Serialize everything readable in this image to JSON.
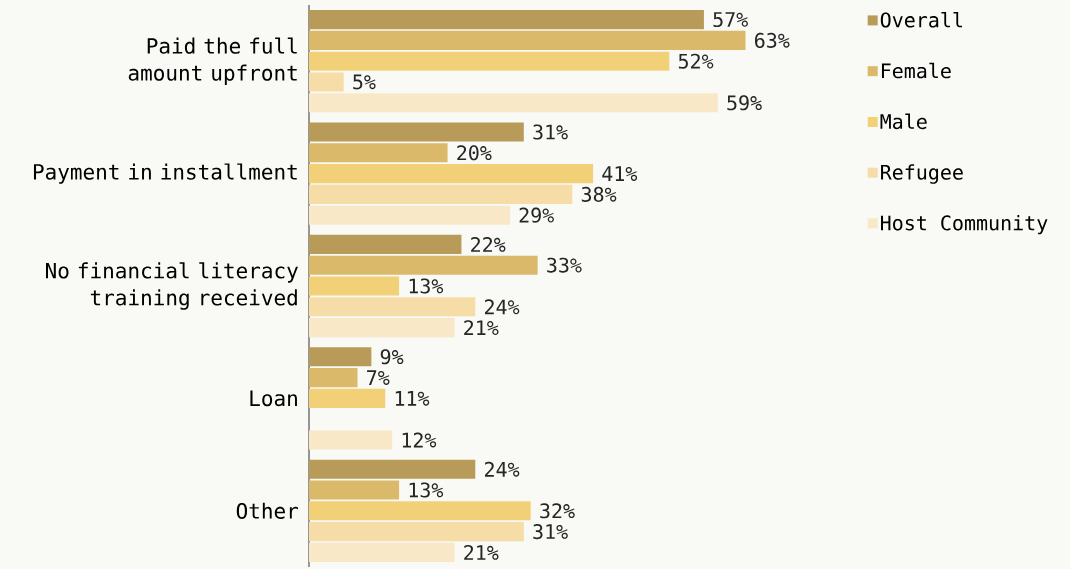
{
  "chart_data": {
    "type": "bar",
    "orientation": "horizontal",
    "legend": "right",
    "categories": [
      "Paid the full amount upfront",
      "Payment in installment",
      "No financial literacy training received",
      "Loan",
      "Other"
    ],
    "series": [
      {
        "name": "Overall",
        "color": "#b89b59",
        "values": [
          57,
          31,
          22,
          9,
          24
        ],
        "value_labels": [
          "57%",
          "31%",
          "22%",
          "9%",
          "24%"
        ]
      },
      {
        "name": "Female",
        "color": "#dab96a",
        "values": [
          63,
          20,
          33,
          7,
          13
        ],
        "value_labels": [
          "63%",
          "20%",
          "33%",
          "7%",
          "13%"
        ]
      },
      {
        "name": "Male",
        "color": "#f2d077",
        "values": [
          52,
          41,
          13,
          11,
          32
        ],
        "value_labels": [
          "52%",
          "41%",
          "13%",
          "11%",
          "32%"
        ]
      },
      {
        "name": "Refugee",
        "color": "#f6dca6",
        "values": [
          5,
          38,
          24,
          null,
          31
        ],
        "value_labels": [
          "5%",
          "38%",
          "24%",
          null,
          "31%"
        ]
      },
      {
        "name": "Host Community",
        "color": "#f8e8c8",
        "values": [
          59,
          29,
          21,
          12,
          21
        ],
        "value_labels": [
          "59%",
          "29%",
          "21%",
          "12%",
          "21%"
        ]
      }
    ]
  }
}
